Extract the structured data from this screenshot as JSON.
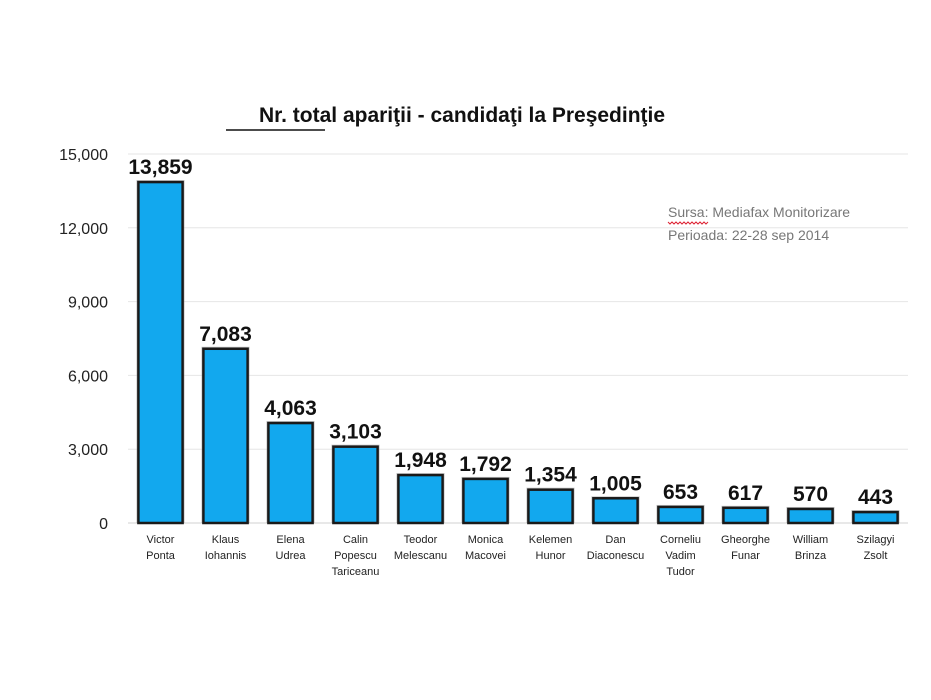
{
  "chart_data": {
    "type": "bar",
    "title": "Nr. total apariţii - candidaţi la Preşedinţie",
    "categories": [
      [
        "Victor",
        "Ponta"
      ],
      [
        "Klaus",
        "Iohannis"
      ],
      [
        "Elena",
        "Udrea"
      ],
      [
        "Calin",
        "Popescu",
        "Tariceanu"
      ],
      [
        "Teodor",
        "Melescanu"
      ],
      [
        "Monica",
        "Macovei"
      ],
      [
        "Kelemen",
        "Hunor"
      ],
      [
        "Dan",
        "Diaconescu"
      ],
      [
        "Corneliu",
        "Vadim",
        "Tudor"
      ],
      [
        "Gheorghe",
        "Funar"
      ],
      [
        "William",
        "Brinza"
      ],
      [
        "Szilagyi",
        "Zsolt"
      ]
    ],
    "values": [
      13859,
      7083,
      4063,
      3103,
      1948,
      1792,
      1354,
      1005,
      653,
      617,
      570,
      443
    ],
    "value_labels": [
      "13,859",
      "7,083",
      "4,063",
      "3,103",
      "1,948",
      "1,792",
      "1,354",
      "1,005",
      "653",
      "617",
      "570",
      "443"
    ],
    "yticks": [
      0,
      3000,
      6000,
      9000,
      12000,
      15000
    ],
    "ytick_labels": [
      "0",
      "3,000",
      "6,000",
      "9,000",
      "12,000",
      "15,000"
    ],
    "ylim": [
      0,
      15000
    ],
    "xlabel": "",
    "ylabel": "",
    "grid": true,
    "legend": "none",
    "bar_color": "#12a8ee",
    "bar_edge_color": "#1a1a1a",
    "grid_color": "#e6e6e6",
    "annotation": {
      "line1": "Sursa: Mediafax Monitorizare",
      "line2": "Perioada: 22-28 sep 2014"
    }
  }
}
